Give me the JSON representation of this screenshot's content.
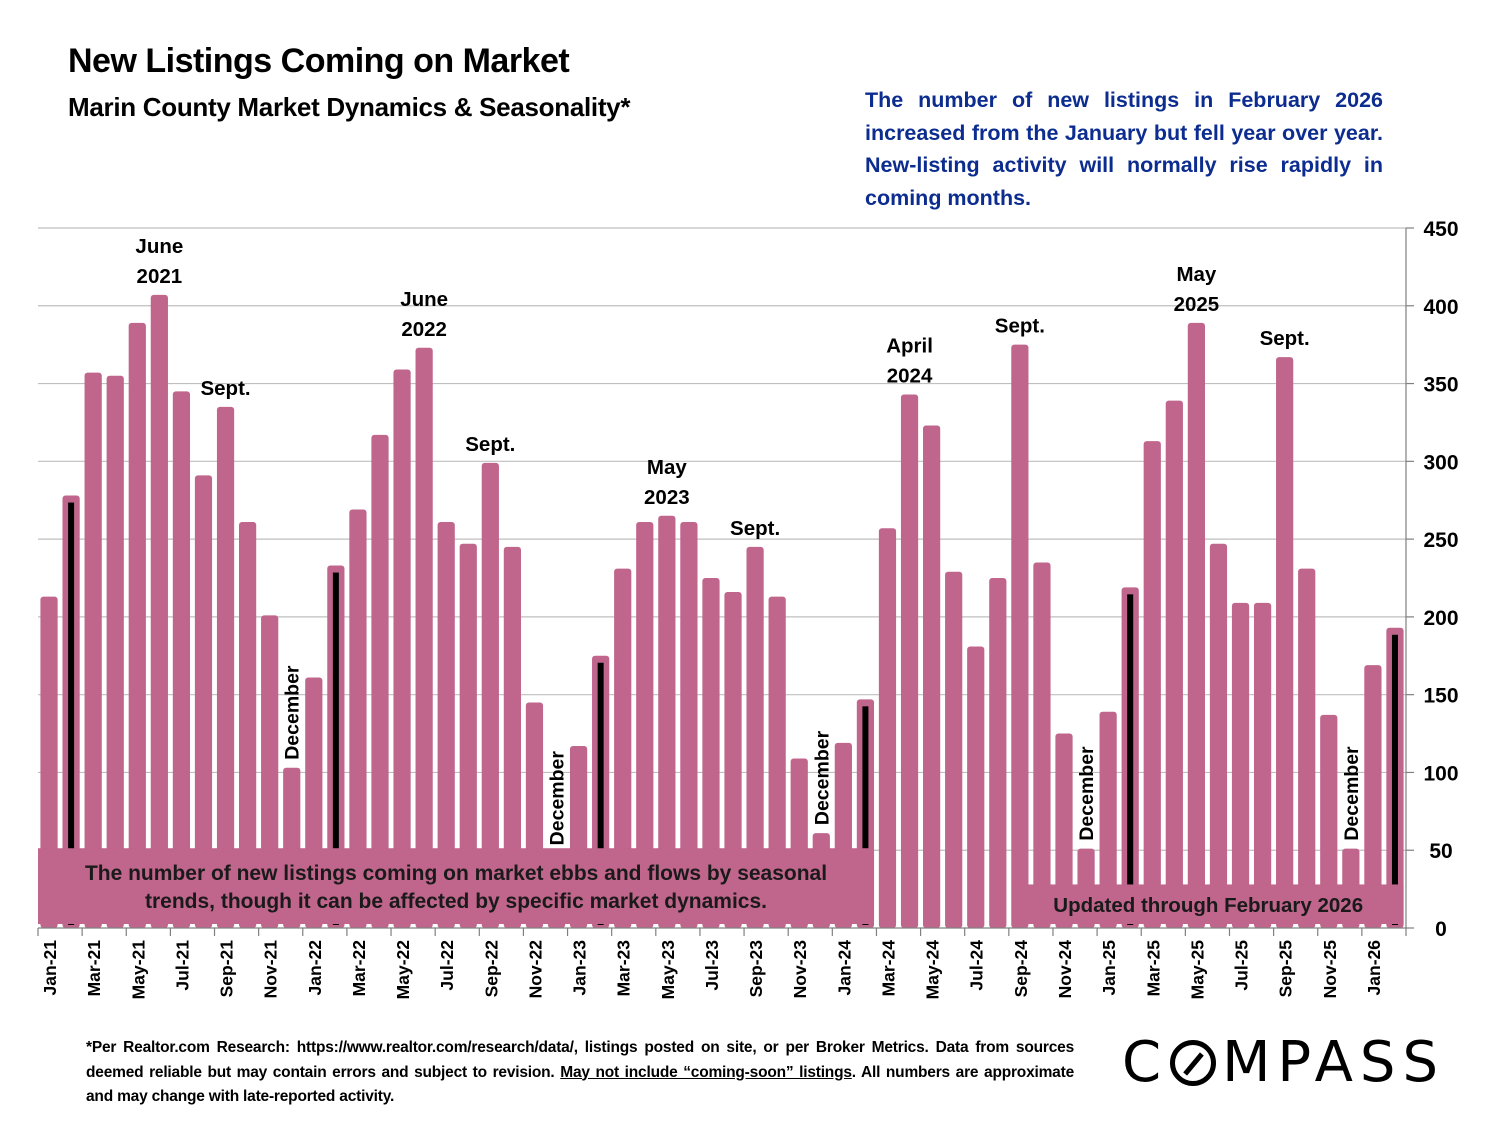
{
  "header": {
    "title": "New Listings Coming on Market",
    "subtitle": "Marin County Market Dynamics & Seasonality*"
  },
  "commentary": "The number of new listings in February 2026 increased from the January but fell year over year. New-listing activity will normally rise rapidly in coming months.",
  "footnote": {
    "part1": "*Per Realtor.com Research:  https://www.realtor.com/research/data/, listings posted on site, or per Broker Metrics. Data from sources deemed reliable but may contain errors and subject to revision. ",
    "underlined": "May not include “coming-soon” listings",
    "part2": ". All numbers are approximate and may change with late-reported activity."
  },
  "logo": {
    "left": "C",
    "right": "MPASS"
  },
  "colors": {
    "bar": "#c0658b",
    "highlight": "#000000",
    "note_text": "#0c2d8f",
    "grid": "#bfbfbf"
  },
  "chart_data": {
    "type": "bar",
    "title": "New Listings Coming on Market",
    "xlabel": "",
    "ylabel": "",
    "ylim": [
      0,
      450
    ],
    "yticks": [
      0,
      50,
      100,
      150,
      200,
      250,
      300,
      350,
      400,
      450
    ],
    "y_axis_side": "right",
    "grid": true,
    "categories": [
      "Jan-21",
      "Feb-21",
      "Mar-21",
      "Apr-21",
      "May-21",
      "Jun-21",
      "Jul-21",
      "Aug-21",
      "Sep-21",
      "Oct-21",
      "Nov-21",
      "Dec-21",
      "Jan-22",
      "Feb-22",
      "Mar-22",
      "Apr-22",
      "May-22",
      "Jun-22",
      "Jul-22",
      "Aug-22",
      "Sep-22",
      "Oct-22",
      "Nov-22",
      "Dec-22",
      "Jan-23",
      "Feb-23",
      "Mar-23",
      "Apr-23",
      "May-23",
      "Jun-23",
      "Jul-23",
      "Aug-23",
      "Sep-23",
      "Oct-23",
      "Nov-23",
      "Dec-23",
      "Jan-24",
      "Feb-24",
      "Mar-24",
      "Apr-24",
      "May-24",
      "Jun-24",
      "Jul-24",
      "Aug-24",
      "Sep-24",
      "Oct-24",
      "Nov-24",
      "Dec-24",
      "Jan-25",
      "Feb-25",
      "Mar-25",
      "Apr-25",
      "May-25",
      "Jun-25",
      "Jul-25",
      "Aug-25",
      "Sep-25",
      "Oct-25",
      "Nov-25",
      "Dec-25",
      "Jan-26",
      "Feb-26"
    ],
    "xtick_labels_every": 2,
    "values": [
      213,
      278,
      357,
      355,
      389,
      407,
      345,
      291,
      335,
      261,
      201,
      103,
      161,
      233,
      269,
      317,
      359,
      373,
      261,
      247,
      299,
      245,
      145,
      48,
      117,
      175,
      231,
      261,
      265,
      261,
      225,
      216,
      245,
      213,
      109,
      61,
      119,
      147,
      257,
      343,
      323,
      229,
      181,
      225,
      375,
      235,
      125,
      51,
      139,
      219,
      313,
      339,
      389,
      247,
      209,
      209,
      367,
      231,
      137,
      51,
      169,
      193
    ],
    "highlighted_months": [
      "Feb-21",
      "Feb-22",
      "Feb-23",
      "Feb-24",
      "Feb-25",
      "Feb-26"
    ],
    "annotations": [
      {
        "text": [
          "June",
          "2021"
        ],
        "at": "Jun-21",
        "type": "peak"
      },
      {
        "text": [
          "Sept."
        ],
        "at": "Sep-21",
        "type": "peak"
      },
      {
        "text": [
          "December"
        ],
        "at": "Dec-21",
        "type": "trough"
      },
      {
        "text": [
          "June",
          "2022"
        ],
        "at": "Jun-22",
        "type": "peak"
      },
      {
        "text": [
          "Sept."
        ],
        "at": "Sep-22",
        "type": "peak"
      },
      {
        "text": [
          "December"
        ],
        "at": "Dec-22",
        "type": "trough"
      },
      {
        "text": [
          "May",
          "2023"
        ],
        "at": "May-23",
        "type": "peak"
      },
      {
        "text": [
          "Sept."
        ],
        "at": "Sep-23",
        "type": "peak"
      },
      {
        "text": [
          "December"
        ],
        "at": "Dec-23",
        "type": "trough"
      },
      {
        "text": [
          "April",
          "2024"
        ],
        "at": "Apr-24",
        "type": "peak"
      },
      {
        "text": [
          "Sept."
        ],
        "at": "Sep-24",
        "type": "peak"
      },
      {
        "text": [
          "December"
        ],
        "at": "Dec-24",
        "type": "trough"
      },
      {
        "text": [
          "May",
          "2025"
        ],
        "at": "May-25",
        "type": "peak"
      },
      {
        "text": [
          "Sept."
        ],
        "at": "Sep-25",
        "type": "peak"
      },
      {
        "text": [
          "December"
        ],
        "at": "Dec-25",
        "type": "trough"
      }
    ],
    "banners": [
      {
        "text": [
          "The number of new listings coming on market ebbs and flows by seasonal",
          "trends, though it can be affected by specific market dynamics."
        ],
        "from": "Jan-21",
        "to": "Feb-24"
      },
      {
        "text": [
          "Updated through February 2026"
        ],
        "from": "Sep-24",
        "to": "Feb-26"
      }
    ]
  }
}
